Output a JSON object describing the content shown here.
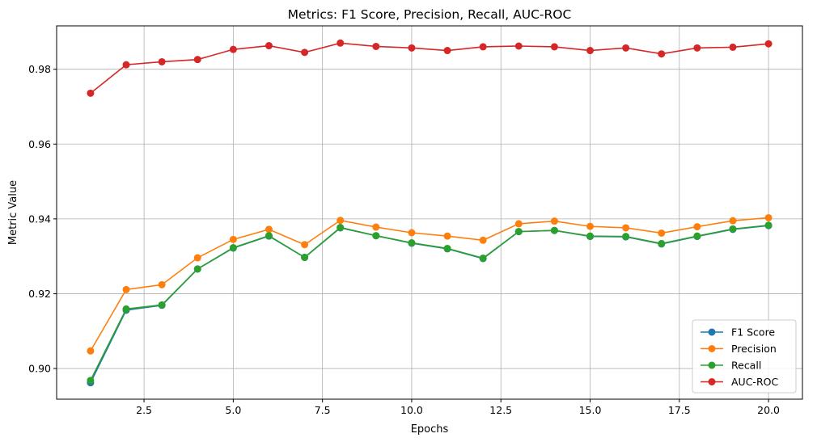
{
  "chart_data": {
    "type": "line",
    "title": "Metrics: F1 Score, Precision, Recall, AUC-ROC",
    "xlabel": "Epochs",
    "ylabel": "Metric Value",
    "xlim": [
      0.05,
      20.95
    ],
    "ylim": [
      0.8918,
      0.9916
    ],
    "xticks": [
      2.5,
      5.0,
      7.5,
      10.0,
      12.5,
      15.0,
      17.5,
      20.0
    ],
    "xtick_labels": [
      "2.5",
      "5.0",
      "7.5",
      "10.0",
      "12.5",
      "15.0",
      "17.5",
      "20.0"
    ],
    "yticks": [
      0.9,
      0.92,
      0.94,
      0.96,
      0.98
    ],
    "ytick_labels": [
      "0.90",
      "0.92",
      "0.94",
      "0.96",
      "0.98"
    ],
    "grid": true,
    "legend_position": "lower-right",
    "x": [
      1,
      2,
      3,
      4,
      5,
      6,
      7,
      8,
      9,
      10,
      11,
      12,
      13,
      14,
      15,
      16,
      17,
      18,
      19,
      20
    ],
    "series": [
      {
        "name": "F1 Score",
        "color": "#1f77b4",
        "values": [
          0.8962,
          0.9156,
          0.9169,
          0.9266,
          0.9322,
          0.9354,
          0.9297,
          0.9376,
          0.9355,
          0.9335,
          0.932,
          0.9294,
          0.9366,
          0.9369,
          0.9353,
          0.9352,
          0.9333,
          0.9353,
          0.9372,
          0.9382
        ]
      },
      {
        "name": "Precision",
        "color": "#ff7f0e",
        "values": [
          0.9047,
          0.9211,
          0.9224,
          0.9296,
          0.9345,
          0.9372,
          0.9331,
          0.9396,
          0.9378,
          0.9363,
          0.9354,
          0.9343,
          0.9387,
          0.9394,
          0.938,
          0.9376,
          0.9362,
          0.9379,
          0.9395,
          0.9403
        ]
      },
      {
        "name": "Recall",
        "color": "#2ca02c",
        "values": [
          0.8968,
          0.9159,
          0.917,
          0.9266,
          0.9323,
          0.9355,
          0.9297,
          0.9377,
          0.9355,
          0.9336,
          0.9321,
          0.9295,
          0.9366,
          0.9369,
          0.9354,
          0.9353,
          0.9334,
          0.9354,
          0.9373,
          0.9383
        ]
      },
      {
        "name": "AUC-ROC",
        "color": "#d62728",
        "values": [
          0.9736,
          0.9812,
          0.982,
          0.9826,
          0.9853,
          0.9863,
          0.9845,
          0.987,
          0.9861,
          0.9857,
          0.985,
          0.986,
          0.9862,
          0.986,
          0.985,
          0.9857,
          0.9841,
          0.9857,
          0.9859,
          0.9868
        ]
      }
    ]
  }
}
